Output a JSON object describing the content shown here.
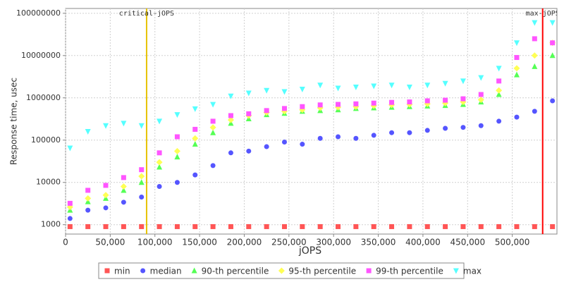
{
  "chart_data": {
    "type": "scatter",
    "log_y": true,
    "grid": true,
    "x_label": "jOPS",
    "y_label": "Response time, usec",
    "xlim": [
      0,
      550000
    ],
    "ylim": [
      600,
      130000000
    ],
    "xticks": [
      0,
      {
        "value": 50000,
        "label": "50,000"
      },
      {
        "value": 100000,
        "label": "100,000"
      },
      {
        "value": 150000,
        "label": "150,000"
      },
      {
        "value": 200000,
        "label": "200,000"
      },
      {
        "value": 250000,
        "label": "250,000"
      },
      {
        "value": 300000,
        "label": "300,000"
      },
      {
        "value": 350000,
        "label": "350,000"
      },
      {
        "value": 400000,
        "label": "400,000"
      },
      {
        "value": 450000,
        "label": "450,000"
      },
      {
        "value": 500000,
        "label": "500,000"
      }
    ],
    "yticks": [
      1000,
      10000,
      100000,
      1000000,
      10000000,
      100000000
    ],
    "x": [
      5000,
      25000,
      45000,
      65000,
      85000,
      105000,
      125000,
      145000,
      165000,
      185000,
      205000,
      225000,
      245000,
      265000,
      285000,
      305000,
      325000,
      345000,
      365000,
      385000,
      405000,
      425000,
      445000,
      465000,
      485000,
      505000,
      525000,
      545000
    ],
    "series": [
      {
        "name": "min",
        "color": "#ff5555",
        "marker": "square",
        "values": [
          900,
          900,
          900,
          900,
          900,
          900,
          900,
          900,
          900,
          900,
          900,
          900,
          900,
          900,
          900,
          900,
          900,
          900,
          900,
          900,
          900,
          900,
          900,
          900,
          900,
          900,
          900,
          900
        ]
      },
      {
        "name": "median",
        "color": "#5555ff",
        "marker": "circle",
        "values": [
          1400,
          2200,
          2500,
          3400,
          4500,
          8000,
          10000,
          15000,
          25000,
          50000,
          55000,
          70000,
          90000,
          80000,
          110000,
          120000,
          110000,
          130000,
          150000,
          150000,
          170000,
          190000,
          200000,
          220000,
          280000,
          350000,
          480000,
          850000
        ]
      },
      {
        "name": "90-th percentile",
        "color": "#55ff55",
        "marker": "up",
        "values": [
          2200,
          3500,
          4200,
          6500,
          10000,
          23000,
          40000,
          80000,
          150000,
          250000,
          320000,
          400000,
          430000,
          480000,
          500000,
          520000,
          560000,
          580000,
          600000,
          620000,
          640000,
          660000,
          700000,
          800000,
          1200000,
          3500000,
          5500000,
          10000000
        ]
      },
      {
        "name": "95-th percentile",
        "color": "#ffff55",
        "marker": "diamond",
        "values": [
          2600,
          4200,
          5000,
          8000,
          14000,
          30000,
          55000,
          110000,
          200000,
          300000,
          380000,
          450000,
          480000,
          520000,
          580000,
          600000,
          620000,
          650000,
          680000,
          700000,
          720000,
          750000,
          800000,
          900000,
          1500000,
          5000000,
          10000000,
          20000000
        ]
      },
      {
        "name": "99-th percentile",
        "color": "#ff55ff",
        "marker": "square",
        "values": [
          3200,
          6500,
          8500,
          13000,
          20000,
          50000,
          120000,
          180000,
          280000,
          380000,
          420000,
          500000,
          560000,
          620000,
          680000,
          700000,
          720000,
          750000,
          780000,
          800000,
          850000,
          880000,
          950000,
          1200000,
          2500000,
          9000000,
          25000000,
          20000000
        ]
      },
      {
        "name": "max",
        "color": "#55ffff",
        "marker": "down",
        "values": [
          65000,
          160000,
          220000,
          250000,
          220000,
          280000,
          400000,
          550000,
          700000,
          1100000,
          1300000,
          1500000,
          1400000,
          1600000,
          2000000,
          1700000,
          1800000,
          1900000,
          2000000,
          1800000,
          2000000,
          2200000,
          2500000,
          3000000,
          5000000,
          20000000,
          60000000,
          60000000
        ]
      }
    ],
    "annotations": [
      {
        "label": "critical-jOPS",
        "x": 90700,
        "color": "#e6c200"
      },
      {
        "label": "max-jOPS",
        "x": 534000,
        "color": "#ff0000"
      }
    ]
  }
}
